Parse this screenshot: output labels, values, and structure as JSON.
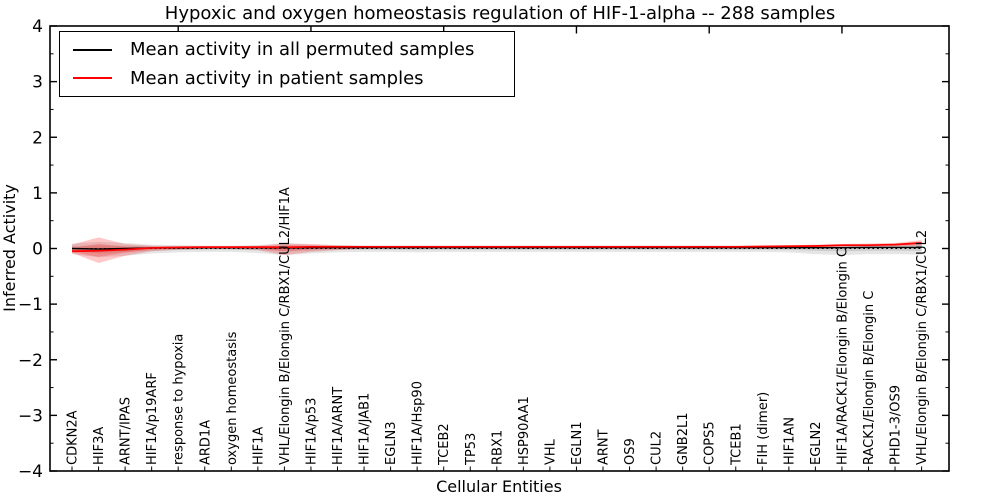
{
  "title": "Hypoxic and oxygen homeostasis regulation of HIF-1-alpha -- 288 samples",
  "legend": {
    "items": [
      {
        "label": "Mean activity in all permuted samples",
        "color": "#000000"
      },
      {
        "label": "Mean activity in patient samples",
        "color": "#ff0000"
      }
    ]
  },
  "axes": {
    "ylabel": "Inferred Activity",
    "xlabel": "Cellular Entities",
    "ylim": [
      -4,
      4
    ],
    "y_tick_labels": [
      "4",
      "3",
      "2",
      "1",
      "0",
      "−1",
      "−2",
      "−3",
      "−4"
    ]
  },
  "colors": {
    "patient_line": "#ff0000",
    "permuted_line": "#000000",
    "patient_band": "rgba(255,0,0,0.22)",
    "permuted_band": "rgba(0,0,0,0.10)",
    "background": "#ffffff"
  },
  "chart_data": {
    "type": "line",
    "title": "Hypoxic and oxygen homeostasis regulation of HIF-1-alpha -- 288 samples",
    "xlabel": "Cellular Entities",
    "ylabel": "Inferred Activity",
    "ylim": [
      -4,
      4
    ],
    "samples": 288,
    "grid": false,
    "legend_position": "upper left",
    "categories": [
      "CDKN2A",
      "HIF3A",
      "ARNT/IPAS",
      "HIF1A/p19ARF",
      "response to hypoxia",
      "ARD1A",
      "oxygen homeostasis",
      "HIF1A",
      "VHL/Elongin B/Elongin C/RBX1/CUL2/HIF1A",
      "HIF1A/p53",
      "HIF1A/ARNT",
      "HIF1A/JAB1",
      "EGLN3",
      "HIF1A/Hsp90",
      "TCEB2",
      "TP53",
      "RBX1",
      "HSP90AA1",
      "VHL",
      "EGLN1",
      "ARNT",
      "OS9",
      "CUL2",
      "GNB2L1",
      "COPS5",
      "TCEB1",
      "FIH (dimer)",
      "HIF1AN",
      "EGLN2",
      "HIF1A/RACK1/Elongin B/Elongin C",
      "RACK1/Elongin B/Elongin C",
      "PHD1-3/OS9",
      "VHL/Elongin B/Elongin C/RBX1/CUL2"
    ],
    "x_major_tick_indices": [
      4,
      9,
      14,
      19,
      24,
      29
    ],
    "zero_line": 0,
    "series": [
      {
        "name": "Mean activity in all permuted samples",
        "color": "#000000",
        "values": [
          0.0,
          -0.01,
          0.0,
          0.01,
          0.01,
          0.015,
          0.015,
          0.015,
          0.01,
          0.015,
          0.015,
          0.015,
          0.015,
          0.015,
          0.015,
          0.015,
          0.015,
          0.015,
          0.015,
          0.015,
          0.015,
          0.015,
          0.015,
          0.015,
          0.015,
          0.015,
          0.015,
          0.015,
          0.015,
          0.015,
          0.02,
          0.02,
          0.02
        ]
      },
      {
        "name": "Mean activity in patient samples",
        "color": "#ff0000",
        "values": [
          -0.05,
          -0.04,
          -0.02,
          0.01,
          0.02,
          0.025,
          0.025,
          0.025,
          0.02,
          0.03,
          0.03,
          0.03,
          0.03,
          0.03,
          0.03,
          0.03,
          0.03,
          0.03,
          0.03,
          0.03,
          0.03,
          0.03,
          0.03,
          0.03,
          0.03,
          0.03,
          0.035,
          0.04,
          0.045,
          0.06,
          0.06,
          0.07,
          0.1
        ]
      }
    ],
    "bands": [
      {
        "name": "permuted-samples-range",
        "series": 0,
        "color": "rgba(0,0,0,0.10)",
        "hi": [
          0.09,
          0.12,
          0.1,
          0.07,
          0.06,
          0.05,
          0.05,
          0.06,
          0.1,
          0.07,
          0.06,
          0.05,
          0.05,
          0.05,
          0.05,
          0.05,
          0.05,
          0.05,
          0.05,
          0.05,
          0.05,
          0.05,
          0.05,
          0.05,
          0.05,
          0.05,
          0.05,
          0.05,
          0.06,
          0.07,
          0.07,
          0.08,
          0.12
        ],
        "lo": [
          -0.1,
          -0.16,
          -0.13,
          -0.09,
          -0.07,
          -0.06,
          -0.06,
          -0.08,
          -0.12,
          -0.09,
          -0.07,
          -0.06,
          -0.06,
          -0.07,
          -0.06,
          -0.06,
          -0.06,
          -0.06,
          -0.06,
          -0.06,
          -0.06,
          -0.06,
          -0.06,
          -0.06,
          -0.06,
          -0.06,
          -0.06,
          -0.07,
          -0.1,
          -0.12,
          -0.1,
          -0.1,
          -0.11
        ]
      },
      {
        "name": "patient-samples-range",
        "series": 1,
        "color": "rgba(255,0,0,0.22)",
        "hi": [
          0.07,
          0.2,
          0.08,
          0.05,
          0.04,
          0.04,
          0.04,
          0.05,
          0.09,
          0.08,
          0.06,
          0.05,
          0.05,
          0.05,
          0.05,
          0.05,
          0.05,
          0.05,
          0.05,
          0.05,
          0.05,
          0.05,
          0.05,
          0.05,
          0.05,
          0.05,
          0.06,
          0.06,
          0.07,
          0.08,
          0.09,
          0.1,
          0.15
        ],
        "lo": [
          -0.08,
          -0.26,
          -0.13,
          -0.05,
          -0.02,
          -0.01,
          -0.01,
          -0.03,
          -0.12,
          -0.06,
          -0.03,
          0.0,
          0.0,
          0.0,
          0.01,
          0.01,
          0.01,
          0.01,
          0.01,
          0.01,
          0.01,
          0.01,
          0.01,
          0.01,
          0.01,
          0.01,
          0.01,
          0.02,
          0.02,
          0.03,
          0.03,
          0.04,
          0.05
        ]
      }
    ]
  }
}
